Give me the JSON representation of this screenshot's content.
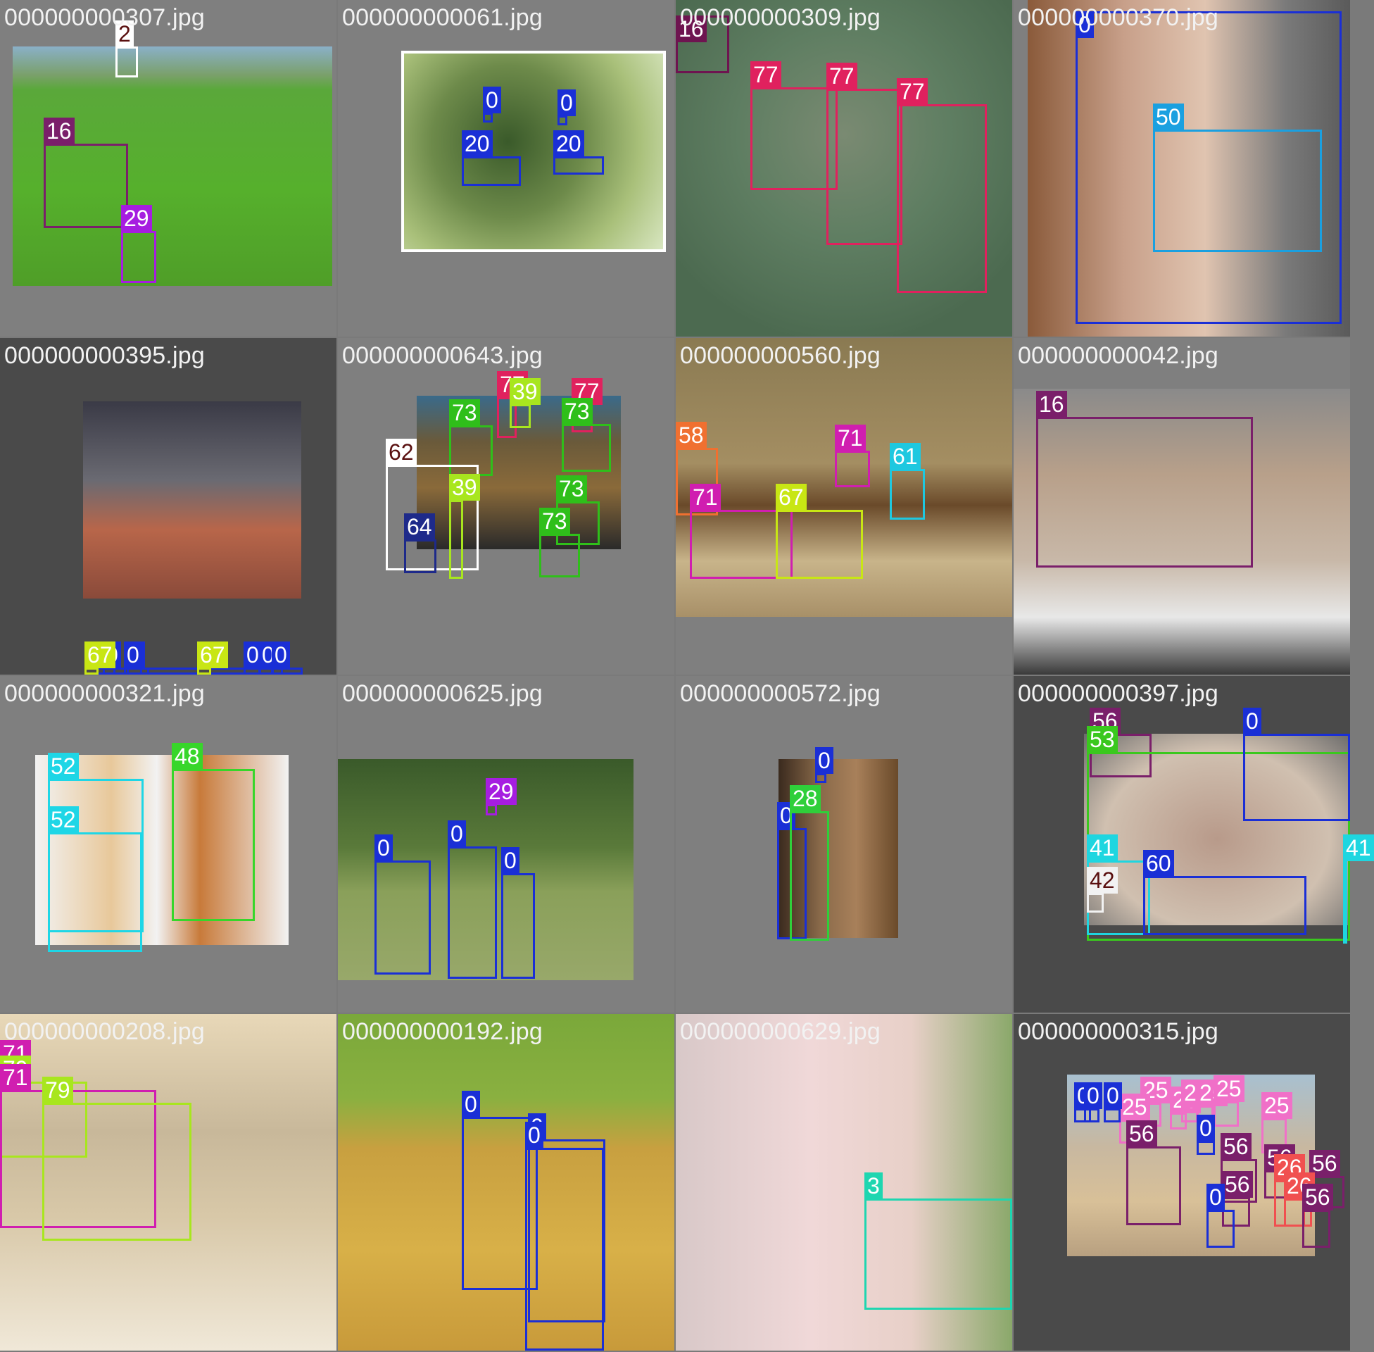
{
  "tiles": [
    {
      "file": "000000000307.jpg",
      "boxes": [
        {
          "label": "2",
          "color": "#ffffff",
          "text_color": "#5a1010"
        },
        {
          "label": "16",
          "color": "#7a1f6a"
        },
        {
          "label": "29",
          "color": "#a61de0"
        }
      ]
    },
    {
      "file": "000000000061.jpg",
      "boxes": [
        {
          "label": "0",
          "color": "#1a2fd6"
        },
        {
          "label": "20",
          "color": "#1a2fd6"
        },
        {
          "label": "0",
          "color": "#1a2fd6"
        },
        {
          "label": "20",
          "color": "#1a2fd6"
        }
      ]
    },
    {
      "file": "000000000309.jpg",
      "boxes": [
        {
          "label": "16",
          "color": "#6e1450"
        },
        {
          "label": "77",
          "color": "#e0215e"
        },
        {
          "label": "77",
          "color": "#e0215e"
        },
        {
          "label": "77",
          "color": "#e0215e"
        }
      ]
    },
    {
      "file": "000000000370.jpg",
      "boxes": [
        {
          "label": "0",
          "color": "#1a2fd6"
        },
        {
          "label": "50",
          "color": "#1aa0e0"
        }
      ]
    },
    {
      "file": "000000000395.jpg",
      "boxes": [
        {
          "label": "0",
          "color": "#1a2fd6"
        },
        {
          "label": "0",
          "color": "#1a2fd6"
        },
        {
          "label": "0",
          "color": "#1a2fd6"
        },
        {
          "label": "0",
          "color": "#1a2fd6"
        },
        {
          "label": "67",
          "color": "#c8e614",
          "text_color": "#ffffff"
        },
        {
          "label": "67",
          "color": "#c8e614",
          "text_color": "#ffffff"
        },
        {
          "label": "0",
          "color": "#1a2fd6"
        },
        {
          "label": "0",
          "color": "#1a2fd6"
        },
        {
          "label": "0",
          "color": "#1a2fd6"
        }
      ]
    },
    {
      "file": "000000000643.jpg",
      "boxes": [
        {
          "label": "77",
          "color": "#e0215e"
        },
        {
          "label": "39",
          "color": "#a8e61e"
        },
        {
          "label": "77",
          "color": "#e0215e"
        },
        {
          "label": "73",
          "color": "#2fbf1a"
        },
        {
          "label": "73",
          "color": "#2fbf1a"
        },
        {
          "label": "62",
          "color": "#ffffff",
          "text_color": "#5a1010"
        },
        {
          "label": "39",
          "color": "#a8e61e"
        },
        {
          "label": "73",
          "color": "#2fbf1a"
        },
        {
          "label": "73",
          "color": "#2fbf1a"
        },
        {
          "label": "64",
          "color": "#1e2a8a"
        }
      ]
    },
    {
      "file": "000000000560.jpg",
      "boxes": [
        {
          "label": "58",
          "color": "#f07030"
        },
        {
          "label": "71",
          "color": "#d01eb0"
        },
        {
          "label": "71",
          "color": "#d01eb0"
        },
        {
          "label": "67",
          "color": "#c8e614"
        },
        {
          "label": "61",
          "color": "#1ec8e0"
        }
      ]
    },
    {
      "file": "000000000042.jpg",
      "boxes": [
        {
          "label": "16",
          "color": "#7a1f6a"
        }
      ]
    },
    {
      "file": "000000000321.jpg",
      "boxes": [
        {
          "label": "52",
          "color": "#1ed6e6"
        },
        {
          "label": "52",
          "color": "#1ed6e6"
        },
        {
          "label": "48",
          "color": "#37d62a"
        }
      ]
    },
    {
      "file": "000000000625.jpg",
      "boxes": [
        {
          "label": "29",
          "color": "#a61de0"
        },
        {
          "label": "0",
          "color": "#1a2fd6"
        },
        {
          "label": "0",
          "color": "#1a2fd6"
        },
        {
          "label": "0",
          "color": "#1a2fd6"
        }
      ]
    },
    {
      "file": "000000000572.jpg",
      "boxes": [
        {
          "label": "0",
          "color": "#1a2fd6"
        },
        {
          "label": "0",
          "color": "#1a2fd6"
        },
        {
          "label": "28",
          "color": "#2fcf3a"
        }
      ]
    },
    {
      "file": "000000000397.jpg",
      "boxes": [
        {
          "label": "56",
          "color": "#7a1f6a"
        },
        {
          "label": "53",
          "color": "#3ac81e"
        },
        {
          "label": "0",
          "color": "#1a2fd6"
        },
        {
          "label": "41",
          "color": "#1ed6e0"
        },
        {
          "label": "41",
          "color": "#1ed6e0"
        },
        {
          "label": "60",
          "color": "#1a2fd6"
        },
        {
          "label": "42",
          "color": "#f2f2f2",
          "text_color": "#5a1010"
        }
      ]
    },
    {
      "file": "000000000208.jpg",
      "boxes": [
        {
          "label": "71",
          "color": "#d01eb0"
        },
        {
          "label": "79",
          "color": "#a8e61e"
        },
        {
          "label": "71",
          "color": "#d01eb0"
        },
        {
          "label": "79",
          "color": "#a8e61e"
        }
      ]
    },
    {
      "file": "000000000192.jpg",
      "boxes": [
        {
          "label": "0",
          "color": "#1a2fd6"
        },
        {
          "label": "0",
          "color": "#1a2fd6"
        },
        {
          "label": "0",
          "color": "#1a2fd6"
        }
      ]
    },
    {
      "file": "000000000629.jpg",
      "boxes": [
        {
          "label": "3",
          "color": "#1ed6b0"
        }
      ]
    },
    {
      "file": "000000000315.jpg",
      "boxes": [
        {
          "label": "25",
          "color": "#f070c8"
        },
        {
          "label": "25",
          "color": "#f070c8"
        },
        {
          "label": "25",
          "color": "#f070c8"
        },
        {
          "label": "25",
          "color": "#f070c8"
        },
        {
          "label": "25",
          "color": "#f070c8"
        },
        {
          "label": "25",
          "color": "#f070c8"
        },
        {
          "label": "25",
          "color": "#f070c8"
        },
        {
          "label": "0",
          "color": "#1a2fd6"
        },
        {
          "label": "0",
          "color": "#1a2fd6"
        },
        {
          "label": "0",
          "color": "#1a2fd6"
        },
        {
          "label": "0",
          "color": "#1a2fd6"
        },
        {
          "label": "56",
          "color": "#7a1f6a"
        },
        {
          "label": "56",
          "color": "#7a1f6a"
        },
        {
          "label": "56",
          "color": "#7a1f6a"
        },
        {
          "label": "56",
          "color": "#7a1f6a"
        },
        {
          "label": "56",
          "color": "#7a1f6a"
        },
        {
          "label": "26",
          "color": "#f05050"
        },
        {
          "label": "26",
          "color": "#f05050"
        },
        {
          "label": "0",
          "color": "#1a2fd6"
        },
        {
          "label": "56",
          "color": "#7a1f6a"
        }
      ]
    }
  ]
}
